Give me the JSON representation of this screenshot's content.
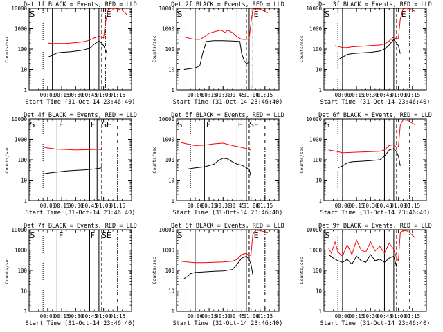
{
  "chart_data": [
    {
      "type": "line",
      "title": "Det 1f BLACK = Events, RED = LLD",
      "xlabel": "Start Time (31-Oct-14 23:46:40)",
      "ylabel": "Counts/sec",
      "ylim": [
        1,
        10000
      ],
      "yscale": "log",
      "x_tick_labels": [
        "00:00",
        "00:15",
        "00:30",
        "00:45",
        "01:00",
        "01:15"
      ],
      "y_tick_labels": [
        "1",
        "10",
        "100",
        "1000",
        "10000"
      ],
      "annotations": [
        "S",
        "E"
      ],
      "series": [
        {
          "name": "Events",
          "color": "#000000",
          "x": [
            0,
            5,
            10,
            15,
            20,
            25,
            30,
            35,
            40,
            45,
            50,
            55,
            58,
            60,
            62,
            64
          ],
          "y": [
            40,
            50,
            65,
            70,
            72,
            75,
            80,
            85,
            95,
            110,
            180,
            250,
            200,
            150,
            90,
            60
          ]
        },
        {
          "name": "LLD",
          "color": "#ff0000",
          "x": [
            0,
            5,
            10,
            15,
            20,
            25,
            30,
            35,
            40,
            45,
            50,
            55,
            58,
            60,
            62,
            65,
            70,
            75,
            80,
            85
          ],
          "y": [
            200,
            190,
            190,
            190,
            190,
            200,
            210,
            220,
            240,
            280,
            350,
            430,
            380,
            350,
            2000,
            9000,
            10000,
            9500,
            8000,
            5000
          ]
        }
      ]
    },
    {
      "type": "line",
      "title": "Det 2f BLACK = Events, RED = LLD",
      "xlabel": "Start Time (31-Oct-14 23:46:40)",
      "ylabel": "Counts/sec",
      "ylim": [
        1,
        10000
      ],
      "yscale": "log",
      "x_tick_labels": [
        "00:00",
        "00:15",
        "00:30",
        "00:45",
        "01:00",
        "01:15"
      ],
      "y_tick_labels": [
        "1",
        "10",
        "100",
        "1000",
        "10000"
      ],
      "annotations": [
        "S",
        "E"
      ],
      "series": [
        {
          "name": "Events",
          "color": "#000000",
          "x": [
            -12,
            -5,
            0,
            5,
            8,
            12,
            20,
            30,
            40,
            48,
            50,
            53,
            55,
            58
          ],
          "y": [
            10,
            11,
            12,
            15,
            60,
            240,
            260,
            260,
            250,
            240,
            60,
            25,
            20,
            22
          ]
        },
        {
          "name": "LLD",
          "color": "#ff0000",
          "x": [
            -12,
            -5,
            0,
            5,
            10,
            15,
            20,
            25,
            28,
            32,
            35,
            40,
            45,
            50,
            55,
            58,
            60,
            62,
            65,
            70,
            78
          ],
          "y": [
            400,
            330,
            300,
            300,
            400,
            600,
            700,
            800,
            850,
            650,
            850,
            650,
            400,
            300,
            300,
            310,
            2000,
            9000,
            9500,
            9000,
            6000
          ]
        }
      ]
    },
    {
      "type": "line",
      "title": "Det 3f BLACK = Events, RED = LLD",
      "xlabel": "Start Time (31-Oct-14 23:46:40)",
      "ylabel": "Counts/sec",
      "ylim": [
        1,
        10000
      ],
      "yscale": "log",
      "x_tick_labels": [
        "00:00",
        "00:15",
        "00:30",
        "00:45",
        "01:00",
        "01:15"
      ],
      "y_tick_labels": [
        "1",
        "10",
        "100",
        "1000",
        "10000"
      ],
      "annotations": [
        "S",
        "E"
      ],
      "series": [
        {
          "name": "Events",
          "color": "#000000",
          "x": [
            -5,
            0,
            5,
            10,
            20,
            30,
            40,
            45,
            50,
            55,
            58,
            60,
            62
          ],
          "y": [
            30,
            40,
            55,
            60,
            65,
            70,
            80,
            100,
            160,
            300,
            200,
            150,
            60
          ]
        },
        {
          "name": "LLD",
          "color": "#ff0000",
          "x": [
            -8,
            0,
            5,
            10,
            20,
            30,
            40,
            45,
            50,
            55,
            58,
            60,
            62,
            65,
            70,
            78
          ],
          "y": [
            150,
            120,
            120,
            130,
            140,
            150,
            160,
            180,
            250,
            400,
            300,
            350,
            3000,
            9500,
            10000,
            7000
          ]
        }
      ]
    },
    {
      "type": "line",
      "title": "Det 4f BLACK = Events, RED = LLD",
      "xlabel": "Start Time (31-Oct-14 23:46:40)",
      "ylabel": "Counts/sec",
      "ylim": [
        1,
        10000
      ],
      "yscale": "log",
      "x_tick_labels": [
        "00:00",
        "00:15",
        "00:30",
        "00:45",
        "01:00",
        "01:15"
      ],
      "y_tick_labels": [
        "1",
        "10",
        "100",
        "1000",
        "10000"
      ],
      "annotations": [
        "S",
        "F",
        "F",
        "SE"
      ],
      "series": [
        {
          "name": "Events",
          "color": "#000000",
          "x": [
            -5,
            0,
            10,
            20,
            30,
            40,
            50,
            55,
            58
          ],
          "y": [
            20,
            22,
            25,
            28,
            30,
            32,
            35,
            38,
            40
          ]
        },
        {
          "name": "LLD",
          "color": "#ff0000",
          "x": [
            -5,
            0,
            10,
            20,
            30,
            40,
            50,
            55,
            58
          ],
          "y": [
            420,
            380,
            330,
            320,
            300,
            310,
            320,
            330,
            310
          ]
        }
      ]
    },
    {
      "type": "line",
      "title": "Det 5f BLACK = Events, RED = LLD",
      "xlabel": "Start Time (31-Oct-14 23:46:40)",
      "ylabel": "Counts/sec",
      "ylim": [
        1,
        10000
      ],
      "yscale": "log",
      "x_tick_labels": [
        "00:00",
        "00:15",
        "00:30",
        "00:45",
        "01:00",
        "01:15"
      ],
      "y_tick_labels": [
        "1",
        "10",
        "100",
        "1000",
        "10000"
      ],
      "annotations": [
        "S",
        "F",
        "F",
        "SE"
      ],
      "series": [
        {
          "name": "Events",
          "color": "#000000",
          "x": [
            -8,
            0,
            10,
            20,
            25,
            30,
            35,
            40,
            45,
            50,
            55,
            58,
            60
          ],
          "y": [
            35,
            40,
            45,
            60,
            90,
            120,
            110,
            80,
            60,
            55,
            40,
            35,
            15
          ]
        },
        {
          "name": "LLD",
          "color": "#ff0000",
          "x": [
            -15,
            -5,
            0,
            10,
            20,
            30,
            40,
            50,
            55,
            58,
            60
          ],
          "y": [
            700,
            550,
            500,
            520,
            600,
            650,
            500,
            400,
            350,
            320,
            300
          ]
        }
      ]
    },
    {
      "type": "line",
      "title": "Det 6f BLACK = Events, RED = LLD",
      "xlabel": "Start Time (31-Oct-14 23:46:40)",
      "ylabel": "Counts/sec",
      "ylim": [
        1,
        10000
      ],
      "yscale": "log",
      "x_tick_labels": [
        "00:00",
        "00:15",
        "00:30",
        "00:45",
        "01:00",
        "01:15"
      ],
      "y_tick_labels": [
        "1",
        "10",
        "100",
        "1000",
        "10000"
      ],
      "annotations": [
        "S"
      ],
      "series": [
        {
          "name": "Events",
          "color": "#000000",
          "x": [
            -5,
            0,
            5,
            10,
            20,
            30,
            40,
            45,
            50,
            55,
            58,
            60,
            62
          ],
          "y": [
            40,
            50,
            70,
            80,
            85,
            90,
            100,
            150,
            300,
            350,
            250,
            150,
            50
          ]
        },
        {
          "name": "LLD",
          "color": "#ff0000",
          "x": [
            -15,
            -5,
            0,
            10,
            20,
            30,
            40,
            45,
            50,
            55,
            58,
            60,
            62,
            65,
            70,
            78
          ],
          "y": [
            300,
            250,
            220,
            230,
            240,
            250,
            260,
            300,
            500,
            550,
            400,
            450,
            5000,
            9000,
            8500,
            5000
          ]
        }
      ]
    },
    {
      "type": "line",
      "title": "Det 7f BLACK = Events, RED = LLD",
      "xlabel": "Start Time (31-Oct-14 23:46:40)",
      "ylabel": "Counts/sec",
      "ylim": [
        1,
        10000
      ],
      "yscale": "log",
      "x_tick_labels": [
        "00:00",
        "00:15",
        "00:30",
        "00:45",
        "01:00",
        "01:15"
      ],
      "y_tick_labels": [
        "1",
        "10",
        "100",
        "1000",
        "10000"
      ],
      "annotations": [
        "S",
        "F",
        "F",
        "SE"
      ],
      "series": []
    },
    {
      "type": "line",
      "title": "Det 8f BLACK = Events, RED = LLD",
      "xlabel": "Start Time (31-Oct-14 23:46:40)",
      "ylabel": "Counts/sec",
      "ylim": [
        1,
        10000
      ],
      "yscale": "log",
      "x_tick_labels": [
        "00:00",
        "00:15",
        "00:30",
        "00:45",
        "01:00",
        "01:15"
      ],
      "y_tick_labels": [
        "1",
        "10",
        "100",
        "1000",
        "10000"
      ],
      "annotations": [
        "S",
        "E"
      ],
      "series": [
        {
          "name": "Events",
          "color": "#000000",
          "x": [
            -12,
            -8,
            -5,
            0,
            10,
            20,
            30,
            40,
            45,
            50,
            55,
            58,
            60,
            62
          ],
          "y": [
            40,
            50,
            70,
            80,
            85,
            90,
            95,
            110,
            200,
            400,
            500,
            350,
            200,
            60
          ]
        },
        {
          "name": "LLD",
          "color": "#ff0000",
          "x": [
            -15,
            -5,
            0,
            10,
            20,
            30,
            40,
            45,
            50,
            55,
            58,
            60,
            62,
            65,
            70,
            78
          ],
          "y": [
            280,
            250,
            240,
            240,
            250,
            260,
            280,
            350,
            600,
            700,
            500,
            600,
            6000,
            9500,
            9000,
            7000
          ]
        }
      ]
    },
    {
      "type": "line",
      "title": "Det 9f BLACK = Events, RED = LLD",
      "xlabel": "Start Time (31-Oct-14 23:46:40)",
      "ylabel": "Counts/sec",
      "ylim": [
        1,
        10000
      ],
      "yscale": "log",
      "x_tick_labels": [
        "00:00",
        "00:15",
        "00:30",
        "00:45",
        "01:00",
        "01:15"
      ],
      "y_tick_labels": [
        "1",
        "10",
        "100",
        "1000",
        "10000"
      ],
      "annotations": [
        "S"
      ],
      "series": [
        {
          "name": "Events",
          "color": "#000000",
          "x": [
            -15,
            -10,
            -5,
            0,
            5,
            10,
            15,
            20,
            25,
            30,
            35,
            40,
            45,
            50,
            55,
            58
          ],
          "y": [
            600,
            400,
            300,
            250,
            350,
            200,
            500,
            300,
            250,
            600,
            300,
            350,
            250,
            400,
            500,
            150
          ]
        },
        {
          "name": "LLD",
          "color": "#ff0000",
          "x": [
            -15,
            -12,
            -8,
            -5,
            0,
            5,
            10,
            15,
            20,
            25,
            30,
            35,
            40,
            45,
            50,
            55,
            58,
            60,
            62,
            65,
            70,
            78
          ],
          "y": [
            1200,
            700,
            2500,
            800,
            500,
            1800,
            600,
            3000,
            1000,
            800,
            2500,
            900,
            1500,
            700,
            2200,
            1100,
            400,
            300,
            7000,
            9000,
            8500,
            4000
          ]
        }
      ]
    }
  ]
}
